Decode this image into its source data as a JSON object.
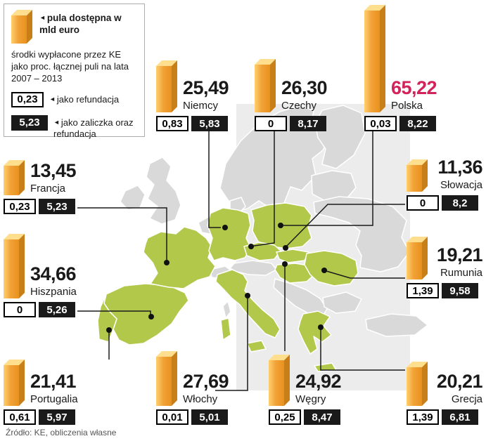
{
  "legend": {
    "arrow_glyph": "◄",
    "bar_icon_label": "pula dostępna w mld euro",
    "description": "środki wypłacone przez KE jako proc. łącznej puli na lata 2007 – 2013",
    "refund_sample": "0,23",
    "refund_label": "jako refundacja",
    "advance_sample": "5,23",
    "advance_label": "jako zaliczka oraz refundacja"
  },
  "footer": {
    "source": "Źródło: KE, obliczenia własne"
  },
  "colors": {
    "bar_orange": "#F2A238",
    "bar_orange_light": "#FFD06E",
    "bar_orange_dark": "#C97F18",
    "bar_top": "#FFDF8E",
    "highlight_green": "#B2C84B",
    "land_gray": "#D9D9D9",
    "sea_gray": "#ECECEC",
    "poland_red": "#D2245B",
    "box_black": "#1A1A1A"
  },
  "chart_data": {
    "type": "bar",
    "unit": "mld euro",
    "legend_note": "środki wypłacone przez KE jako proc. łącznej puli na lata 2007 – 2013; biała ramka = jako refundacja, czarna ramka = jako zaliczka oraz refundacja",
    "categories": [
      "Niemcy",
      "Czechy",
      "Polska",
      "Francja",
      "Słowacja",
      "Hiszpania",
      "Rumunia",
      "Portugalia",
      "Włochy",
      "Węgry",
      "Grecja"
    ],
    "series": [
      {
        "name": "pula dostępna (mld euro)",
        "values": [
          25.49,
          26.3,
          65.22,
          13.45,
          11.36,
          34.66,
          19.21,
          21.41,
          27.69,
          24.92,
          20.21
        ]
      },
      {
        "name": "jako refundacja (proc.)",
        "values": [
          0.83,
          0,
          0.03,
          0.23,
          0,
          0,
          1.39,
          0.61,
          0.01,
          0.25,
          1.39
        ]
      },
      {
        "name": "jako zaliczka oraz refundacja (proc.)",
        "values": [
          5.83,
          8.17,
          8.22,
          5.23,
          8.2,
          5.26,
          9.58,
          5.97,
          5.01,
          8.47,
          6.81
        ]
      }
    ],
    "countries": [
      {
        "name": "Niemcy",
        "pool": "25,49",
        "refund_pct": "0,83",
        "advance_pct": "5,83"
      },
      {
        "name": "Czechy",
        "pool": "26,30",
        "refund_pct": "0",
        "advance_pct": "8,17"
      },
      {
        "name": "Polska",
        "pool": "65,22",
        "refund_pct": "0,03",
        "advance_pct": "8,22",
        "highlight": true
      },
      {
        "name": "Francja",
        "pool": "13,45",
        "refund_pct": "0,23",
        "advance_pct": "5,23"
      },
      {
        "name": "Słowacja",
        "pool": "11,36",
        "refund_pct": "0",
        "advance_pct": "8,2"
      },
      {
        "name": "Hiszpania",
        "pool": "34,66",
        "refund_pct": "0",
        "advance_pct": "5,26"
      },
      {
        "name": "Rumunia",
        "pool": "19,21",
        "refund_pct": "1,39",
        "advance_pct": "9,58"
      },
      {
        "name": "Portugalia",
        "pool": "21,41",
        "refund_pct": "0,61",
        "advance_pct": "5,97"
      },
      {
        "name": "Włochy",
        "pool": "27,69",
        "refund_pct": "0,01",
        "advance_pct": "5,01"
      },
      {
        "name": "Węgry",
        "pool": "24,92",
        "refund_pct": "0,25",
        "advance_pct": "8,47"
      },
      {
        "name": "Grecja",
        "pool": "20,21",
        "refund_pct": "1,39",
        "advance_pct": "6,81"
      }
    ]
  }
}
